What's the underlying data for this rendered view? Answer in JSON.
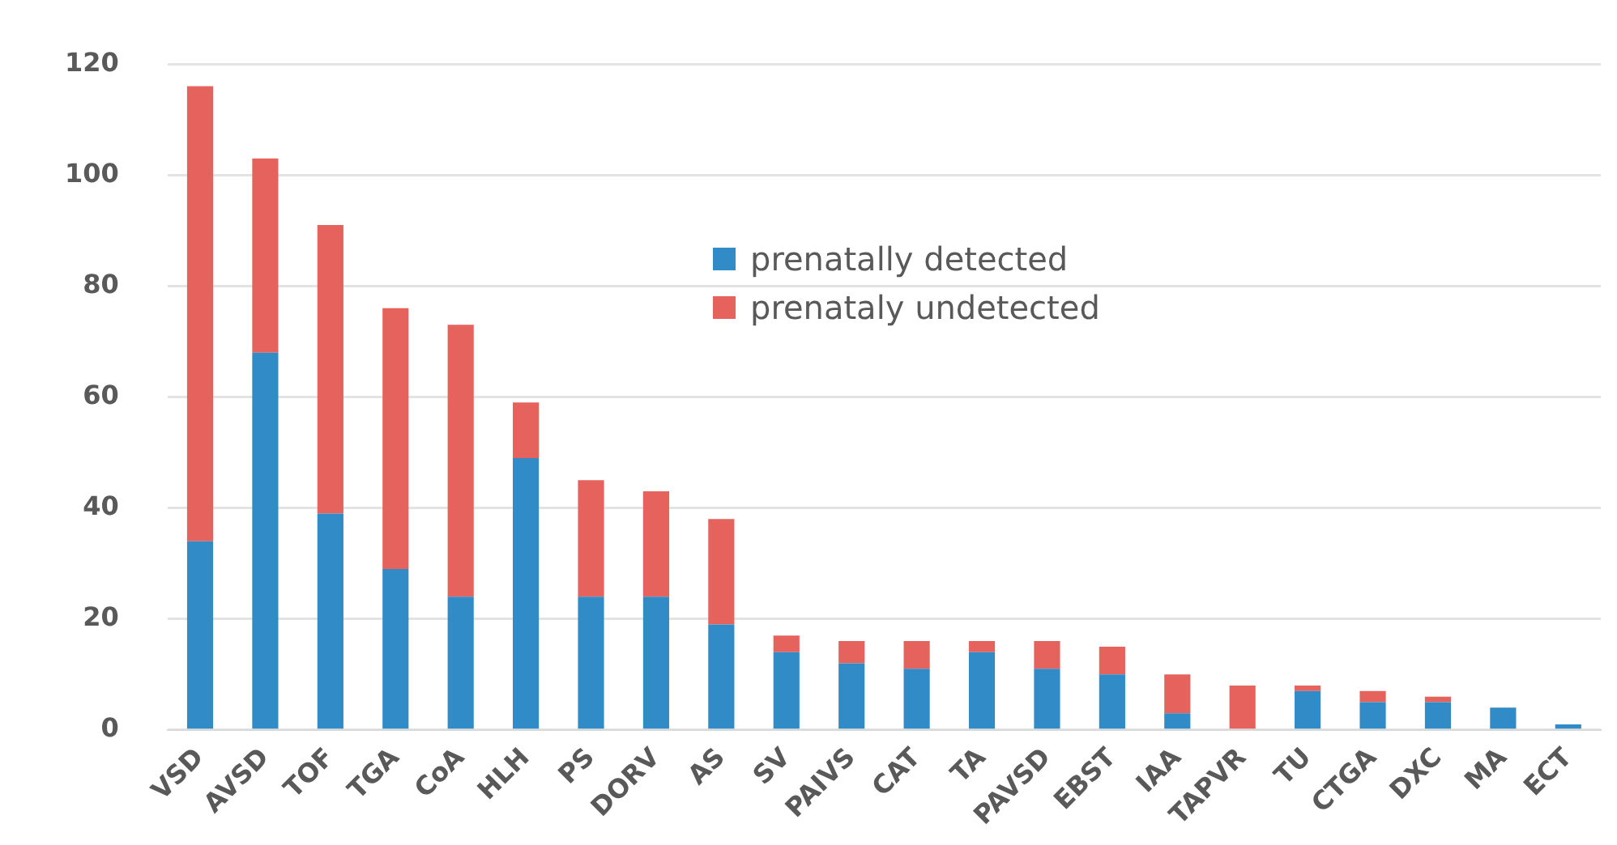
{
  "chart_data": {
    "type": "bar",
    "stacked": true,
    "categories": [
      "VSD",
      "AVSD",
      "TOF",
      "TGA",
      "CoA",
      "HLH",
      "PS",
      "DORV",
      "AS",
      "SV",
      "PAIVS",
      "CAT",
      "TA",
      "PAVSD",
      "EBST",
      "IAA",
      "TAPVR",
      "TU",
      "CTGA",
      "DXC",
      "MA",
      "ECT"
    ],
    "series": [
      {
        "name": "prenatally detected",
        "color": "#318bc6",
        "values": [
          34,
          68,
          39,
          29,
          24,
          49,
          24,
          24,
          19,
          14,
          12,
          11,
          14,
          11,
          10,
          3,
          0,
          7,
          5,
          5,
          4,
          1
        ]
      },
      {
        "name": "prenataly undetected",
        "color": "#e6625c",
        "values": [
          82,
          35,
          52,
          47,
          49,
          10,
          21,
          19,
          19,
          3,
          4,
          5,
          2,
          5,
          5,
          7,
          8,
          1,
          2,
          1,
          0,
          0
        ]
      }
    ],
    "ylim": [
      0,
      120
    ],
    "yticks": [
      0,
      20,
      40,
      60,
      80,
      100,
      120
    ],
    "grid": "y",
    "legend": "top"
  }
}
